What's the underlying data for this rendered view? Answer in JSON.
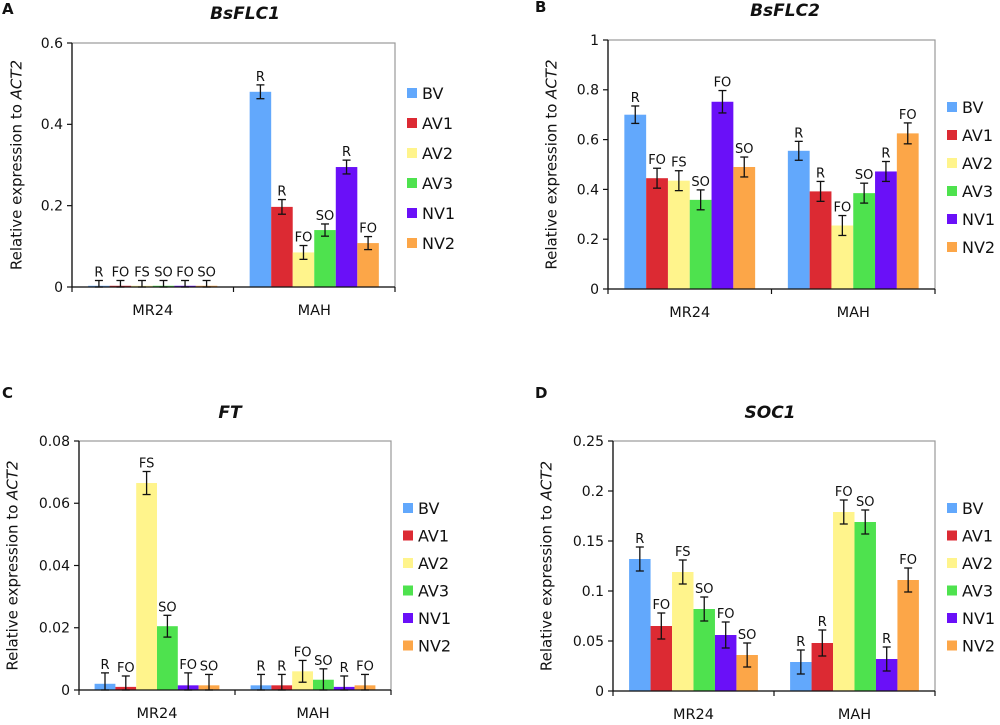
{
  "chart_data": [
    {
      "panel": "A",
      "type": "bar",
      "title": "BsFLC1",
      "ylabel": "Relative expression to ",
      "ylabel_italic": "ACT2",
      "ylim": [
        0,
        0.6
      ],
      "yticks": [
        "0",
        "0.2",
        "0.4",
        "0.6"
      ],
      "ytick_values": [
        0,
        0.2,
        0.4,
        0.6
      ],
      "categories": [
        "MR24",
        "MAH"
      ],
      "legend": "right",
      "grid": false,
      "series": [
        {
          "name": "BV",
          "color": "#62a8fc",
          "values": [
            0.003,
            0.48
          ],
          "errors": [
            0.013,
            0.017
          ],
          "labels": [
            "R",
            "R"
          ]
        },
        {
          "name": "AV1",
          "color": "#dc2a33",
          "values": [
            0.003,
            0.197
          ],
          "errors": [
            0.013,
            0.018
          ],
          "labels": [
            "FO",
            "R"
          ]
        },
        {
          "name": "AV2",
          "color": "#fff48c",
          "values": [
            0.003,
            0.085
          ],
          "errors": [
            0.013,
            0.017
          ],
          "labels": [
            "FS",
            "FO"
          ]
        },
        {
          "name": "AV3",
          "color": "#4ee24e",
          "values": [
            0.003,
            0.14
          ],
          "errors": [
            0.013,
            0.015
          ],
          "labels": [
            "SO",
            "SO"
          ]
        },
        {
          "name": "NV1",
          "color": "#6a10f8",
          "values": [
            0.003,
            0.295
          ],
          "errors": [
            0.013,
            0.017
          ],
          "labels": [
            "FO",
            "R"
          ]
        },
        {
          "name": "NV2",
          "color": "#fca648",
          "values": [
            0.003,
            0.108
          ],
          "errors": [
            0.013,
            0.016
          ],
          "labels": [
            "SO",
            "FO"
          ]
        }
      ]
    },
    {
      "panel": "B",
      "type": "bar",
      "title": "BsFLC2",
      "ylabel": "Relative expression to ",
      "ylabel_italic": "ACT2",
      "ylim": [
        0,
        1
      ],
      "yticks": [
        "0",
        "0.2",
        "0.4",
        "0.6",
        "0.8",
        "1"
      ],
      "ytick_values": [
        0,
        0.2,
        0.4,
        0.6,
        0.8,
        1
      ],
      "categories": [
        "MR24",
        "MAH"
      ],
      "legend": "right",
      "grid": false,
      "series": [
        {
          "name": "BV",
          "color": "#62a8fc",
          "values": [
            0.7,
            0.555
          ],
          "errors": [
            0.035,
            0.038
          ],
          "labels": [
            "R",
            "R"
          ]
        },
        {
          "name": "AV1",
          "color": "#dc2a33",
          "values": [
            0.445,
            0.392
          ],
          "errors": [
            0.04,
            0.04
          ],
          "labels": [
            "FO",
            "R"
          ]
        },
        {
          "name": "AV2",
          "color": "#fff48c",
          "values": [
            0.435,
            0.255
          ],
          "errors": [
            0.04,
            0.04
          ],
          "labels": [
            "FS",
            "FO"
          ]
        },
        {
          "name": "AV3",
          "color": "#4ee24e",
          "values": [
            0.358,
            0.385
          ],
          "errors": [
            0.04,
            0.04
          ],
          "labels": [
            "SO",
            "SO"
          ]
        },
        {
          "name": "NV1",
          "color": "#6a10f8",
          "values": [
            0.752,
            0.472
          ],
          "errors": [
            0.045,
            0.04
          ],
          "labels": [
            "FO",
            "R"
          ]
        },
        {
          "name": "NV2",
          "color": "#fca648",
          "values": [
            0.49,
            0.625
          ],
          "errors": [
            0.04,
            0.042
          ],
          "labels": [
            "SO",
            "FO"
          ]
        }
      ]
    },
    {
      "panel": "C",
      "type": "bar",
      "title": "FT",
      "ylabel": "Relative expression to ",
      "ylabel_italic": "ACT2",
      "ylim": [
        0,
        0.08
      ],
      "yticks": [
        "0",
        "0.02",
        "0.04",
        "0.06",
        "0.08"
      ],
      "ytick_values": [
        0,
        0.02,
        0.04,
        0.06,
        0.08
      ],
      "categories": [
        "MR24",
        "MAH"
      ],
      "legend": "right",
      "grid": false,
      "series": [
        {
          "name": "BV",
          "color": "#62a8fc",
          "values": [
            0.002,
            0.0015
          ],
          "errors": [
            0.0035,
            0.0035
          ],
          "labels": [
            "R",
            "R"
          ]
        },
        {
          "name": "AV1",
          "color": "#dc2a33",
          "values": [
            0.001,
            0.0015
          ],
          "errors": [
            0.0035,
            0.0035
          ],
          "labels": [
            "FO",
            "R"
          ]
        },
        {
          "name": "AV2",
          "color": "#fff48c",
          "values": [
            0.0665,
            0.006
          ],
          "errors": [
            0.0037,
            0.0035
          ],
          "labels": [
            "FS",
            "FO"
          ]
        },
        {
          "name": "AV3",
          "color": "#4ee24e",
          "values": [
            0.0205,
            0.0033
          ],
          "errors": [
            0.0035,
            0.0035
          ],
          "labels": [
            "SO",
            "SO"
          ]
        },
        {
          "name": "NV1",
          "color": "#6a10f8",
          "values": [
            0.0015,
            0.001
          ],
          "errors": [
            0.004,
            0.0035
          ],
          "labels": [
            "FO",
            "R"
          ]
        },
        {
          "name": "NV2",
          "color": "#fca648",
          "values": [
            0.0015,
            0.0015
          ],
          "errors": [
            0.0035,
            0.0035
          ],
          "labels": [
            "SO",
            "FO"
          ]
        }
      ]
    },
    {
      "panel": "D",
      "type": "bar",
      "title": "SOC1",
      "ylabel": "Relative expression to ",
      "ylabel_italic": "ACT2",
      "ylim": [
        0,
        0.25
      ],
      "yticks": [
        "0",
        "0.05",
        "0.1",
        "0.15",
        "0.2",
        "0.25"
      ],
      "ytick_values": [
        0,
        0.05,
        0.1,
        0.15,
        0.2,
        0.25
      ],
      "categories": [
        "MR24",
        "MAH"
      ],
      "legend": "right",
      "grid": false,
      "series": [
        {
          "name": "BV",
          "color": "#62a8fc",
          "values": [
            0.132,
            0.029
          ],
          "errors": [
            0.012,
            0.012
          ],
          "labels": [
            "R",
            "R"
          ]
        },
        {
          "name": "AV1",
          "color": "#dc2a33",
          "values": [
            0.065,
            0.048
          ],
          "errors": [
            0.013,
            0.013
          ],
          "labels": [
            "FO",
            "R"
          ]
        },
        {
          "name": "AV2",
          "color": "#fff48c",
          "values": [
            0.119,
            0.179
          ],
          "errors": [
            0.012,
            0.012
          ],
          "labels": [
            "FS",
            "FO"
          ]
        },
        {
          "name": "AV3",
          "color": "#4ee24e",
          "values": [
            0.082,
            0.169
          ],
          "errors": [
            0.012,
            0.012
          ],
          "labels": [
            "SO",
            "SO"
          ]
        },
        {
          "name": "NV1",
          "color": "#6a10f8",
          "values": [
            0.056,
            0.032
          ],
          "errors": [
            0.013,
            0.012
          ],
          "labels": [
            "FO",
            "R"
          ]
        },
        {
          "name": "NV2",
          "color": "#fca648",
          "values": [
            0.036,
            0.111
          ],
          "errors": [
            0.012,
            0.012
          ],
          "labels": [
            "SO",
            "FO"
          ]
        }
      ]
    }
  ]
}
